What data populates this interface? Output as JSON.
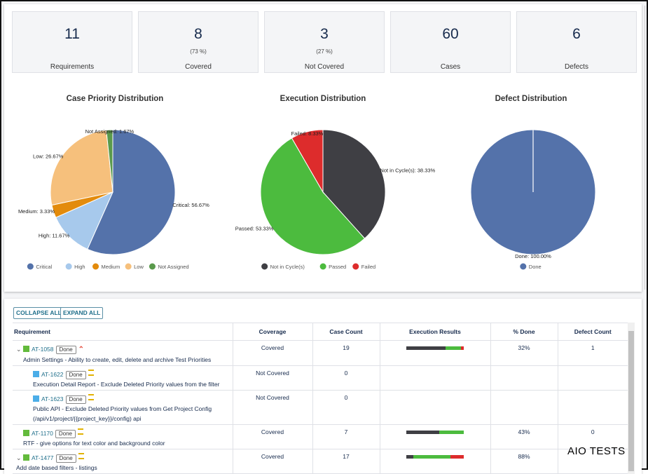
{
  "summary": {
    "requirements": {
      "value": "11",
      "label": "Requirements"
    },
    "covered": {
      "value": "8",
      "pct": "(73 %)",
      "label": "Covered"
    },
    "not_covered": {
      "value": "3",
      "pct": "(27 %)",
      "label": "Not Covered"
    },
    "cases": {
      "value": "60",
      "label": "Cases"
    },
    "defects": {
      "value": "6",
      "label": "Defects"
    }
  },
  "charts": {
    "priority": {
      "title": "Case Priority Distribution",
      "slices": [
        {
          "name": "Critical",
          "value": 56.67,
          "color": "#5472aa",
          "label": "Critical: 56.67%"
        },
        {
          "name": "High",
          "value": 11.67,
          "color": "#a7c9ec",
          "label": "High: 11.67%"
        },
        {
          "name": "Medium",
          "value": 3.33,
          "color": "#e38b0c",
          "label": "Medium: 3.33%"
        },
        {
          "name": "Low",
          "value": 26.67,
          "color": "#f6c07c",
          "label": "Low: 26.67%"
        },
        {
          "name": "Not Assigned",
          "value": 1.67,
          "color": "#5a9a4c",
          "label": "Not Assigned: 1.67%"
        }
      ]
    },
    "execution": {
      "title": "Execution Distribution",
      "slices": [
        {
          "name": "Not in Cycle(s)",
          "value": 38.33,
          "color": "#3f3f44",
          "label": "Not in Cycle(s): 38.33%"
        },
        {
          "name": "Passed",
          "value": 53.33,
          "color": "#4cbb3e",
          "label": "Passed: 53.33%"
        },
        {
          "name": "Failed",
          "value": 8.33,
          "color": "#dd2c2c",
          "label": "Failed: 8.33%"
        }
      ]
    },
    "defect": {
      "title": "Defect Distribution",
      "slices": [
        {
          "name": "Done",
          "value": 100.0,
          "color": "#5472aa",
          "label": "Done: 100.00%"
        }
      ]
    }
  },
  "toolbar": {
    "collapse_all": "COLLAPSE ALL",
    "expand_all": "EXPAND ALL"
  },
  "table": {
    "headers": [
      "Requirement",
      "Coverage",
      "Case Count",
      "Execution Results",
      "% Done",
      "Defect Count"
    ],
    "rows": [
      {
        "key": "AT-1058",
        "status": "Done",
        "priority": "high",
        "type": "story",
        "summary": "Admin Settings - Ability to create, edit, delete and archive Test Priorities",
        "coverage": "Covered",
        "case_count": "19",
        "exec": {
          "not_in_cycle": 0.68,
          "passed": 0.27,
          "failed": 0.05
        },
        "pct_done": "32%",
        "defect_count": "1"
      },
      {
        "key": "AT-1622",
        "status": "Done",
        "priority": "medium",
        "type": "task",
        "summary": "Execution Detail Report - Exclude Deleted Priority values from the filter",
        "coverage": "Not Covered",
        "case_count": "0",
        "pct_done": "",
        "defect_count": ""
      },
      {
        "key": "AT-1623",
        "status": "Done",
        "priority": "medium",
        "type": "task",
        "summary": "Public API - Exclude Deleted Priority values from Get Project Config",
        "summary2": "(/api/v1/project/{{project_key}}/config) api",
        "coverage": "Not Covered",
        "case_count": "0",
        "pct_done": "",
        "defect_count": ""
      },
      {
        "key": "AT-1170",
        "status": "Done",
        "priority": "medium",
        "type": "story",
        "summary": "RTF - give options for text color and background color",
        "coverage": "Covered",
        "case_count": "7",
        "exec": {
          "not_in_cycle": 0.57,
          "passed": 0.43,
          "failed": 0
        },
        "pct_done": "43%",
        "defect_count": "0"
      },
      {
        "key": "AT-1477",
        "status": "Done",
        "priority": "medium",
        "type": "story",
        "summary": "Add date based filters - listings",
        "coverage": "Covered",
        "case_count": "17",
        "exec": {
          "not_in_cycle": 0.12,
          "passed": 0.65,
          "failed": 0.23
        },
        "pct_done": "88%",
        "defect_count": ""
      }
    ]
  },
  "watermark": "AIO TESTS"
}
